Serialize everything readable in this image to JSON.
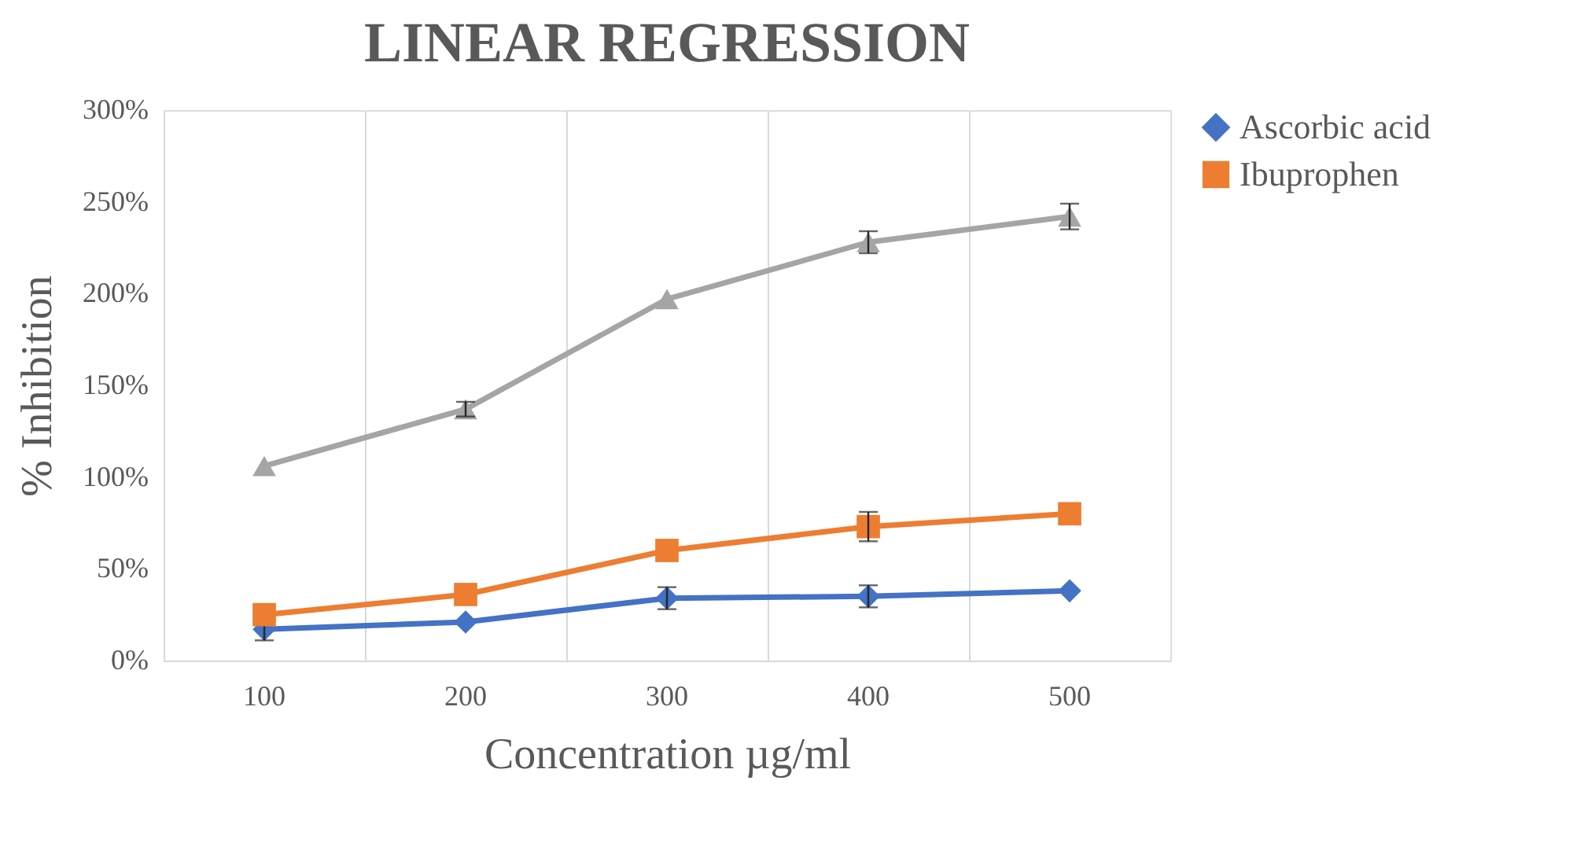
{
  "chart_data": {
    "type": "line",
    "title": "LINEAR REGRESSION",
    "xlabel": "Concentration µg/ml",
    "ylabel": "% Inhibition",
    "categories": [
      "100",
      "200",
      "300",
      "400",
      "500"
    ],
    "series": [
      {
        "name": "Ascorbic acid",
        "color": "#4472c4",
        "marker": "diamond",
        "values": [
          17,
          21,
          34,
          35,
          38
        ],
        "errors": [
          6,
          null,
          6,
          6,
          null
        ]
      },
      {
        "name": "Ibuprophen",
        "color": "#ed7d31",
        "marker": "square",
        "values": [
          25,
          36,
          60,
          73,
          80
        ],
        "errors": [
          null,
          null,
          null,
          8,
          null
        ]
      },
      {
        "color": "#a5a5a5",
        "marker": "triangle",
        "values": [
          106,
          137,
          197,
          228,
          242
        ],
        "errors": [
          null,
          4,
          null,
          6,
          7
        ]
      }
    ],
    "ylim": [
      0,
      300
    ],
    "yticks": [
      {
        "value": 0,
        "label": "0%"
      },
      {
        "value": 50,
        "label": "50%"
      },
      {
        "value": 100,
        "label": "100%"
      },
      {
        "value": 150,
        "label": "150%"
      },
      {
        "value": 200,
        "label": "200%"
      },
      {
        "value": 250,
        "label": "250%"
      },
      {
        "value": 300,
        "label": "300%"
      }
    ],
    "grid": "x",
    "legend": "right",
    "line_style": "solid"
  }
}
